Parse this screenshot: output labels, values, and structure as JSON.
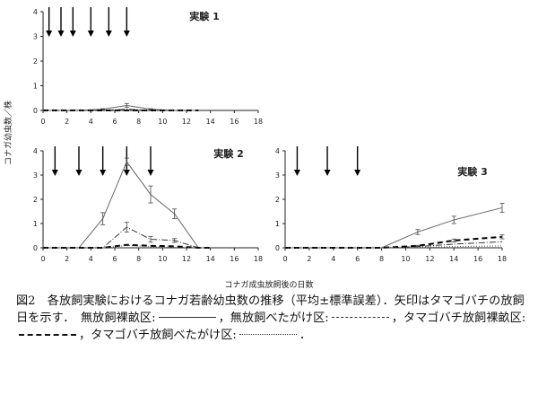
{
  "chart_data": [
    {
      "type": "line",
      "title": "実験 1",
      "x_ticks": [
        0,
        2,
        4,
        6,
        8,
        10,
        12,
        14,
        16,
        18
      ],
      "y_ticks": [
        0,
        1,
        2,
        3,
        4
      ],
      "xlim": [
        0,
        18
      ],
      "ylim": [
        0,
        4
      ],
      "release_days": [
        0.5,
        1.5,
        2.5,
        4,
        5.5,
        7
      ],
      "series": [
        {
          "style": "solid",
          "points": [
            [
              0,
              0
            ],
            [
              3,
              0
            ],
            [
              5,
              0.05
            ],
            [
              7,
              0.2
            ],
            [
              9,
              0.05
            ],
            [
              11,
              0
            ],
            [
              13,
              0
            ]
          ],
          "errors": [
            0,
            0,
            0.02,
            0.08,
            0.02,
            0,
            0
          ]
        },
        {
          "style": "dashdot",
          "points": [
            [
              0,
              0
            ],
            [
              5,
              0
            ],
            [
              7,
              0.05
            ],
            [
              9,
              0
            ],
            [
              13,
              0
            ]
          ]
        },
        {
          "style": "dashed",
          "points": [
            [
              0,
              0
            ],
            [
              13,
              0
            ]
          ]
        },
        {
          "style": "dotted",
          "points": [
            [
              0,
              0
            ],
            [
              13,
              0
            ]
          ]
        }
      ]
    },
    {
      "type": "line",
      "title": "実験 2",
      "x_ticks": [
        0,
        2,
        4,
        6,
        8,
        10,
        12,
        14,
        16,
        18
      ],
      "y_ticks": [
        0,
        1,
        2,
        3,
        4
      ],
      "xlim": [
        0,
        18
      ],
      "ylim": [
        0,
        4
      ],
      "release_days": [
        1,
        3,
        5,
        7,
        9
      ],
      "series": [
        {
          "style": "solid",
          "points": [
            [
              0,
              0
            ],
            [
              3,
              0
            ],
            [
              5,
              1.2
            ],
            [
              7,
              3.55
            ],
            [
              9,
              2.2
            ],
            [
              11,
              1.4
            ],
            [
              13,
              0
            ],
            [
              14,
              0
            ]
          ],
          "errors": [
            0,
            0,
            0.25,
            0.15,
            0.35,
            0.2,
            0,
            0
          ]
        },
        {
          "style": "dashdot",
          "points": [
            [
              0,
              0
            ],
            [
              5,
              0
            ],
            [
              7,
              0.85
            ],
            [
              9,
              0.35
            ],
            [
              11,
              0.3
            ],
            [
              13,
              0
            ],
            [
              14,
              0
            ]
          ],
          "errors": [
            0,
            0,
            0.2,
            0.12,
            0.08,
            0,
            0
          ]
        },
        {
          "style": "dashed",
          "points": [
            [
              0,
              0
            ],
            [
              5,
              0
            ],
            [
              7,
              0.12
            ],
            [
              9,
              0.08
            ],
            [
              11,
              0.06
            ],
            [
              13,
              0
            ],
            [
              14,
              0
            ]
          ]
        },
        {
          "style": "dotted",
          "points": [
            [
              0,
              0
            ],
            [
              5,
              0
            ],
            [
              7,
              0.1
            ],
            [
              9,
              0.04
            ],
            [
              11,
              0.02
            ],
            [
              13,
              0
            ],
            [
              14,
              0
            ]
          ]
        }
      ]
    },
    {
      "type": "line",
      "title": "実験 3",
      "x_ticks": [
        0,
        2,
        4,
        6,
        8,
        10,
        12,
        14,
        16,
        18
      ],
      "y_ticks": [
        0,
        1,
        2,
        3,
        4
      ],
      "xlim": [
        0,
        18
      ],
      "ylim": [
        0,
        4
      ],
      "release_days": [
        1,
        3.5,
        6
      ],
      "series": [
        {
          "style": "solid",
          "points": [
            [
              0,
              0
            ],
            [
              7,
              0
            ],
            [
              8,
              0
            ],
            [
              11,
              0.65
            ],
            [
              14,
              1.15
            ],
            [
              18,
              1.65
            ]
          ],
          "errors": [
            0,
            0,
            0,
            0.1,
            0.15,
            0.18
          ]
        },
        {
          "style": "dashdot",
          "points": [
            [
              0,
              0
            ],
            [
              8,
              0
            ],
            [
              11,
              0.05
            ],
            [
              14,
              0.15
            ],
            [
              18,
              0.25
            ]
          ]
        },
        {
          "style": "dashed",
          "points": [
            [
              0,
              0
            ],
            [
              8,
              0
            ],
            [
              11,
              0.08
            ],
            [
              14,
              0.3
            ],
            [
              18,
              0.45
            ]
          ],
          "errors": [
            0,
            0,
            0.02,
            0.06,
            0.08
          ]
        },
        {
          "style": "dotted",
          "points": [
            [
              0,
              0
            ],
            [
              8,
              0
            ],
            [
              11,
              0.02
            ],
            [
              14,
              0.05
            ],
            [
              18,
              0.08
            ]
          ]
        }
      ]
    }
  ],
  "ylabel": "コナガ幼虫数／株",
  "xlabel": "コナガ成虫放飼後の日数",
  "caption": {
    "part1": "図2　各放飼実験におけるコナガ若齢幼虫数の推移（平均±標準誤差）．矢印はタマゴバチの放飼日を示す．　無放飼裸畝区:",
    "part2": "，無放飼べたがけ区:",
    "part3": "，タマゴバチ放飼裸畝区:",
    "part4": "，タマゴバチ放飼べたがけ区:",
    "part5": "．"
  }
}
